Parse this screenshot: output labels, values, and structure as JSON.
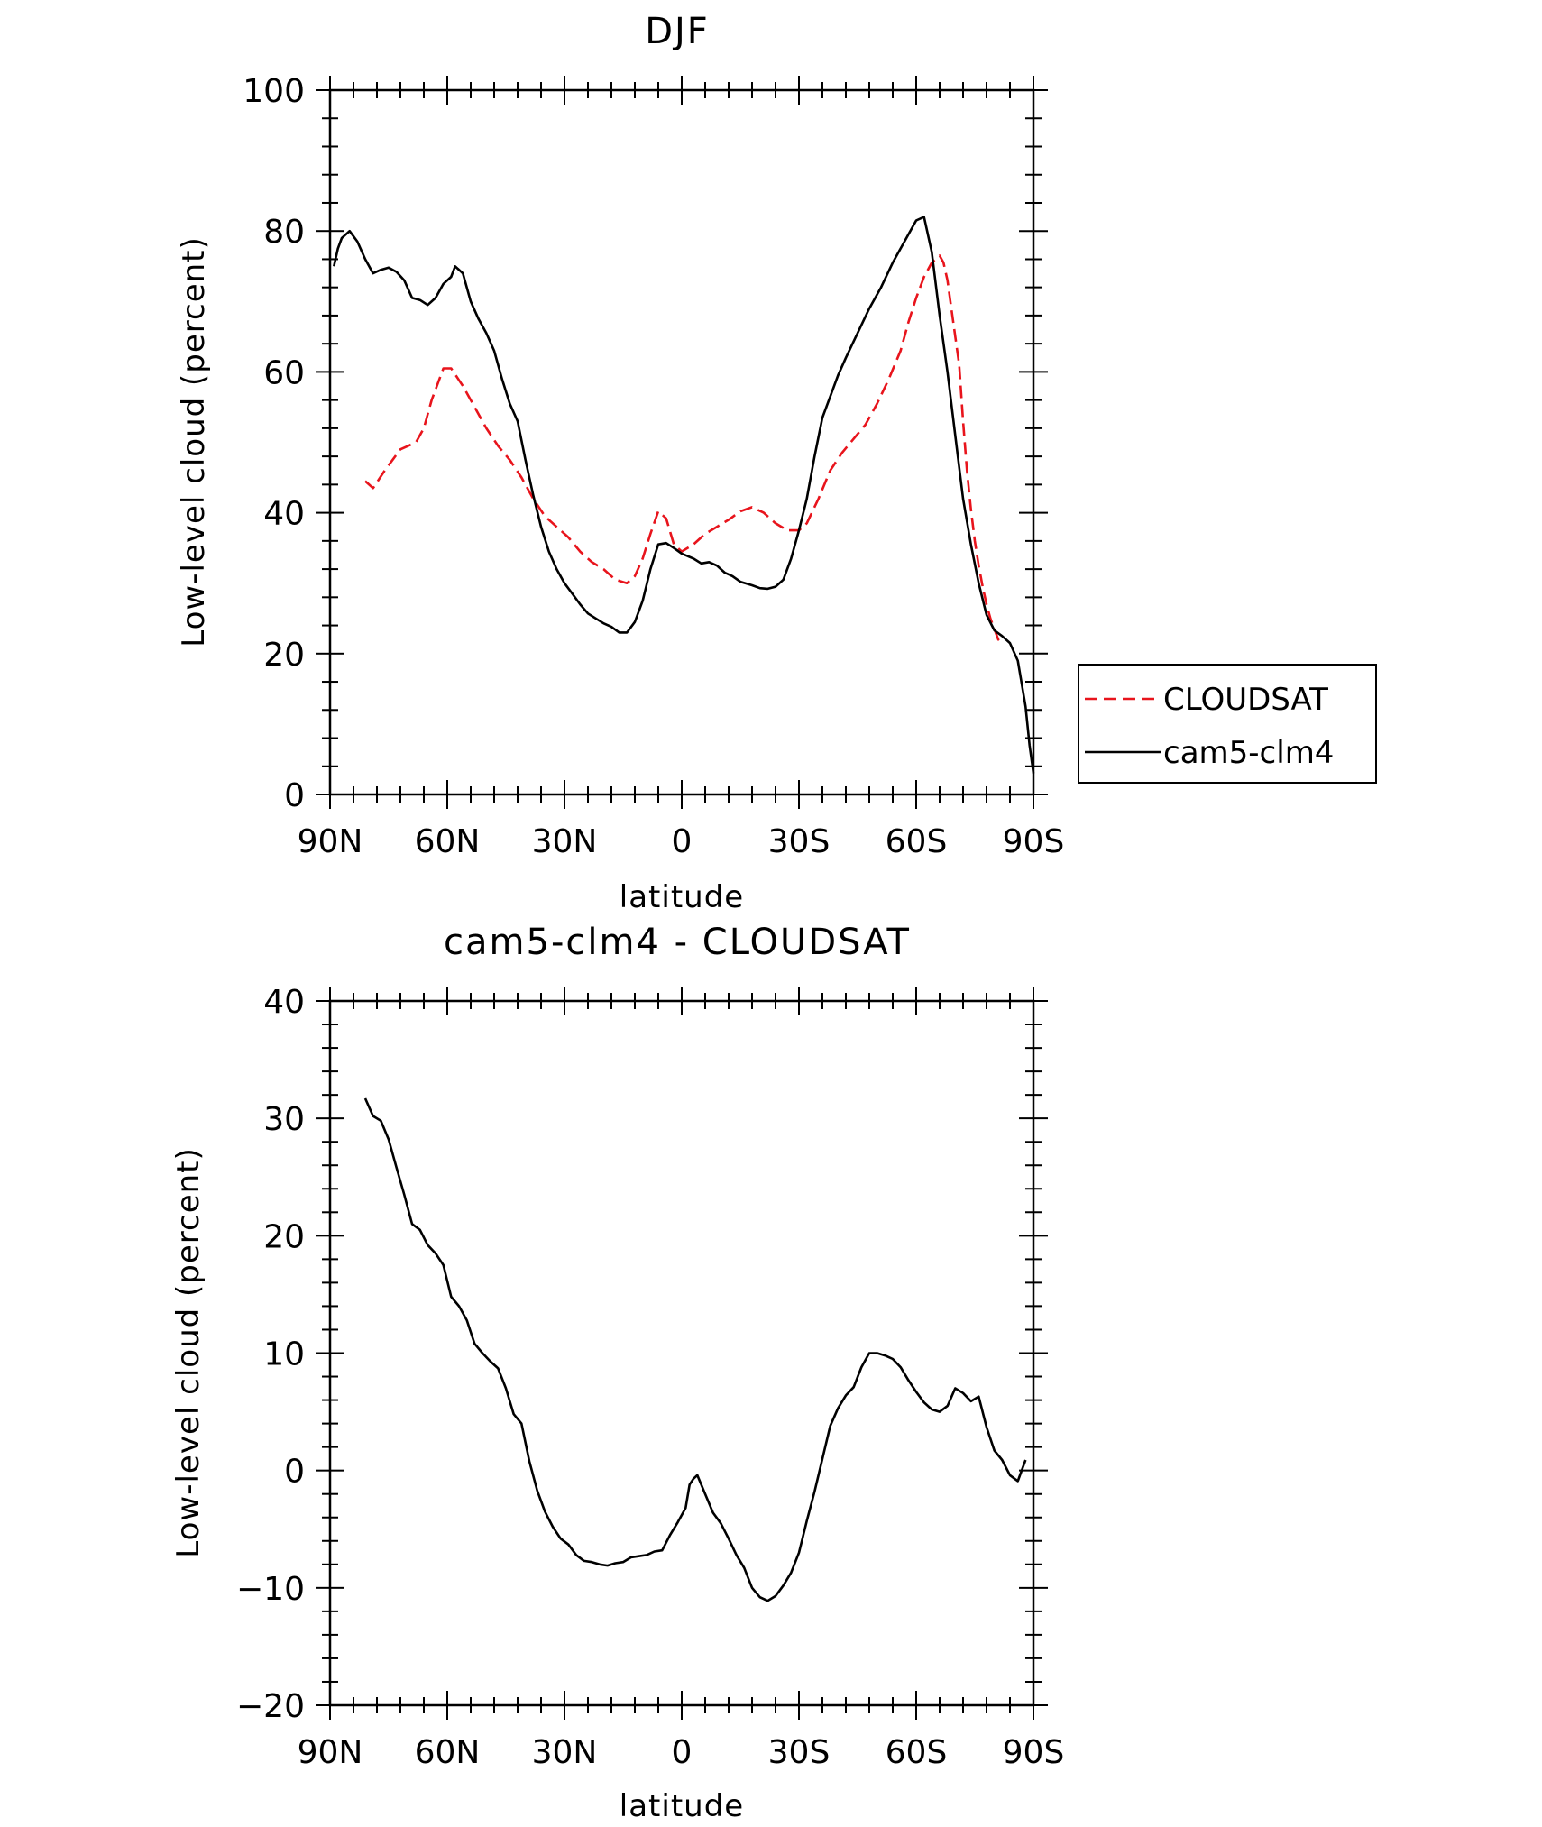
{
  "chart_data": [
    {
      "type": "line",
      "title": "DJF",
      "xlabel": "latitude",
      "ylabel": "Low-level cloud (percent)",
      "xlim": [
        90,
        -90
      ],
      "ylim": [
        0,
        100
      ],
      "x_ticks": [
        90,
        60,
        30,
        0,
        -30,
        -60,
        -90
      ],
      "x_tick_labels": [
        "90N",
        "60N",
        "30N",
        "0",
        "30S",
        "60S",
        "90S"
      ],
      "y_ticks": [
        0,
        20,
        40,
        60,
        80,
        100
      ],
      "y_tick_labels": [
        "0",
        "20",
        "40",
        "60",
        "80",
        "100"
      ],
      "legend": {
        "position": "right",
        "entries": [
          "CLOUDSAT",
          "cam5-clm4"
        ]
      },
      "series": [
        {
          "name": "CLOUDSAT",
          "color": "#e8141c",
          "style": "dashed",
          "points": [
            [
              81,
              44.5
            ],
            [
              79,
              43.5
            ],
            [
              76,
              46
            ],
            [
              72,
              49
            ],
            [
              70,
              49.5
            ],
            [
              68,
              50
            ],
            [
              66,
              52
            ],
            [
              64,
              56
            ],
            [
              61,
              60.5
            ],
            [
              59,
              60.5
            ],
            [
              56,
              58
            ],
            [
              53,
              55
            ],
            [
              50,
              52
            ],
            [
              47,
              49.5
            ],
            [
              44,
              47.5
            ],
            [
              41,
              45
            ],
            [
              38,
              42
            ],
            [
              35,
              39.5
            ],
            [
              32,
              38
            ],
            [
              29,
              36.5
            ],
            [
              26,
              34.5
            ],
            [
              23,
              33
            ],
            [
              20,
              32
            ],
            [
              17,
              30.5
            ],
            [
              14,
              30
            ],
            [
              12,
              31
            ],
            [
              10,
              33.5
            ],
            [
              8,
              37
            ],
            [
              6,
              40.2
            ],
            [
              4,
              39.2
            ],
            [
              2,
              35.5
            ],
            [
              0,
              34.5
            ],
            [
              -3,
              35.5
            ],
            [
              -6,
              37
            ],
            [
              -9,
              38
            ],
            [
              -12,
              39
            ],
            [
              -15,
              40.2
            ],
            [
              -18,
              40.8
            ],
            [
              -21,
              40
            ],
            [
              -24,
              38.5
            ],
            [
              -27,
              37.5
            ],
            [
              -30,
              37.5
            ],
            [
              -32,
              38.5
            ],
            [
              -35,
              42
            ],
            [
              -38,
              46
            ],
            [
              -41,
              48.5
            ],
            [
              -44,
              50.5
            ],
            [
              -47,
              52.5
            ],
            [
              -50,
              55.5
            ],
            [
              -53,
              59
            ],
            [
              -56,
              63
            ],
            [
              -58,
              67
            ],
            [
              -60,
              70.5
            ],
            [
              -62,
              73.5
            ],
            [
              -64,
              75.5
            ],
            [
              -66,
              76.5
            ],
            [
              -67,
              75.5
            ],
            [
              -68,
              73
            ],
            [
              -69,
              69
            ],
            [
              -71,
              61
            ],
            [
              -72,
              53
            ],
            [
              -73,
              46
            ],
            [
              -74,
              40.5
            ],
            [
              -75,
              36
            ],
            [
              -76,
              32.5
            ],
            [
              -77,
              29.5
            ],
            [
              -78,
              27
            ],
            [
              -79,
              25
            ],
            [
              -80,
              23.5
            ],
            [
              -81,
              22
            ],
            [
              -82,
              21.5
            ]
          ]
        },
        {
          "name": "cam5-clm4",
          "color": "#000000",
          "style": "solid",
          "points": [
            [
              89,
              75
            ],
            [
              88,
              77.5
            ],
            [
              87,
              79
            ],
            [
              85,
              80
            ],
            [
              83,
              78.5
            ],
            [
              81,
              76
            ],
            [
              79,
              74
            ],
            [
              77,
              74.5
            ],
            [
              75,
              74.8
            ],
            [
              73,
              74.2
            ],
            [
              71,
              73
            ],
            [
              69,
              70.5
            ],
            [
              67,
              70.2
            ],
            [
              65,
              69.5
            ],
            [
              63,
              70.5
            ],
            [
              61,
              72.5
            ],
            [
              59,
              73.5
            ],
            [
              58,
              75
            ],
            [
              56,
              74
            ],
            [
              54,
              70
            ],
            [
              52,
              67.5
            ],
            [
              50,
              65.5
            ],
            [
              48,
              63
            ],
            [
              46,
              59
            ],
            [
              44,
              55.5
            ],
            [
              42,
              53
            ],
            [
              40,
              47.5
            ],
            [
              38,
              42.5
            ],
            [
              36,
              38
            ],
            [
              34,
              34.5
            ],
            [
              32,
              32
            ],
            [
              30,
              30
            ],
            [
              28,
              28.5
            ],
            [
              26,
              27
            ],
            [
              24,
              25.7
            ],
            [
              22,
              25
            ],
            [
              20,
              24.3
            ],
            [
              18,
              23.8
            ],
            [
              16,
              23
            ],
            [
              14,
              23
            ],
            [
              12,
              24.5
            ],
            [
              10,
              27.5
            ],
            [
              8,
              32
            ],
            [
              6,
              35.5
            ],
            [
              4,
              35.7
            ],
            [
              2,
              35
            ],
            [
              0,
              34.2
            ],
            [
              -3,
              33.5
            ],
            [
              -5,
              32.8
            ],
            [
              -7,
              33
            ],
            [
              -9,
              32.5
            ],
            [
              -11,
              31.5
            ],
            [
              -13,
              31
            ],
            [
              -15,
              30.2
            ],
            [
              -18,
              29.7
            ],
            [
              -20,
              29.3
            ],
            [
              -22,
              29.2
            ],
            [
              -24,
              29.5
            ],
            [
              -26,
              30.5
            ],
            [
              -28,
              33.5
            ],
            [
              -30,
              37.5
            ],
            [
              -32,
              42
            ],
            [
              -34,
              48
            ],
            [
              -36,
              53.5
            ],
            [
              -38,
              56.5
            ],
            [
              -40,
              59.5
            ],
            [
              -42,
              62
            ],
            [
              -45,
              65.5
            ],
            [
              -48,
              69
            ],
            [
              -51,
              72
            ],
            [
              -54,
              75.5
            ],
            [
              -57,
              78.5
            ],
            [
              -60,
              81.5
            ],
            [
              -62,
              82
            ],
            [
              -64,
              77
            ],
            [
              -66,
              68
            ],
            [
              -68,
              60
            ],
            [
              -70,
              51
            ],
            [
              -72,
              42
            ],
            [
              -74,
              35.5
            ],
            [
              -76,
              30
            ],
            [
              -78,
              25.5
            ],
            [
              -80,
              23.3
            ],
            [
              -82,
              22.5
            ],
            [
              -84,
              21.5
            ],
            [
              -86,
              19
            ],
            [
              -88,
              12.5
            ],
            [
              -89,
              7
            ],
            [
              -90,
              3
            ]
          ]
        }
      ]
    },
    {
      "type": "line",
      "title": "cam5-clm4 - CLOUDSAT",
      "xlabel": "latitude",
      "ylabel": "Low-level cloud (percent)",
      "xlim": [
        90,
        -90
      ],
      "ylim": [
        -20,
        40
      ],
      "x_ticks": [
        90,
        60,
        30,
        0,
        -30,
        -60,
        -90
      ],
      "x_tick_labels": [
        "90N",
        "60N",
        "30N",
        "0",
        "30S",
        "60S",
        "90S"
      ],
      "y_ticks": [
        -20,
        -10,
        0,
        10,
        20,
        30,
        40
      ],
      "y_tick_labels": [
        "−20",
        "−10",
        "0",
        "10",
        "20",
        "30",
        "40"
      ],
      "series": [
        {
          "color": "#000000",
          "style": "solid",
          "points": [
            [
              81,
              31.7
            ],
            [
              79,
              30.2
            ],
            [
              77,
              29.8
            ],
            [
              75,
              28.2
            ],
            [
              73,
              25.8
            ],
            [
              71,
              23.5
            ],
            [
              69,
              21
            ],
            [
              67,
              20.5
            ],
            [
              65,
              19.2
            ],
            [
              63,
              18.5
            ],
            [
              61,
              17.5
            ],
            [
              59,
              14.8
            ],
            [
              57,
              14
            ],
            [
              55,
              12.8
            ],
            [
              53,
              10.8
            ],
            [
              51,
              10
            ],
            [
              49,
              9.3
            ],
            [
              47,
              8.7
            ],
            [
              45,
              7
            ],
            [
              43,
              4.8
            ],
            [
              41,
              4
            ],
            [
              39,
              0.8
            ],
            [
              37,
              -1.7
            ],
            [
              35,
              -3.5
            ],
            [
              33,
              -4.8
            ],
            [
              31,
              -5.8
            ],
            [
              29,
              -6.3
            ],
            [
              27,
              -7.2
            ],
            [
              25,
              -7.7
            ],
            [
              23,
              -7.8
            ],
            [
              21,
              -8
            ],
            [
              19,
              -8.1
            ],
            [
              17,
              -7.9
            ],
            [
              15,
              -7.8
            ],
            [
              13,
              -7.4
            ],
            [
              11,
              -7.3
            ],
            [
              9,
              -7.2
            ],
            [
              7,
              -6.9
            ],
            [
              5,
              -6.8
            ],
            [
              3,
              -5.5
            ],
            [
              1,
              -4.4
            ],
            [
              -1,
              -3.2
            ],
            [
              -2,
              -1.2
            ],
            [
              -3,
              -0.7
            ],
            [
              -4,
              -0.4
            ],
            [
              -6,
              -2
            ],
            [
              -8,
              -3.6
            ],
            [
              -10,
              -4.5
            ],
            [
              -12,
              -5.8
            ],
            [
              -14,
              -7.2
            ],
            [
              -16,
              -8.3
            ],
            [
              -18,
              -10
            ],
            [
              -20,
              -10.8
            ],
            [
              -22,
              -11.1
            ],
            [
              -24,
              -10.7
            ],
            [
              -26,
              -9.8
            ],
            [
              -28,
              -8.7
            ],
            [
              -30,
              -7
            ],
            [
              -32,
              -4.3
            ],
            [
              -34,
              -1.8
            ],
            [
              -36,
              1
            ],
            [
              -38,
              3.8
            ],
            [
              -40,
              5.3
            ],
            [
              -42,
              6.4
            ],
            [
              -44,
              7.1
            ],
            [
              -46,
              8.8
            ],
            [
              -48,
              10
            ],
            [
              -50,
              10
            ],
            [
              -52,
              9.8
            ],
            [
              -54,
              9.5
            ],
            [
              -56,
              8.8
            ],
            [
              -58,
              7.7
            ],
            [
              -60,
              6.7
            ],
            [
              -62,
              5.8
            ],
            [
              -64,
              5.2
            ],
            [
              -66,
              5
            ],
            [
              -68,
              5.5
            ],
            [
              -70,
              7
            ],
            [
              -72,
              6.6
            ],
            [
              -74,
              5.9
            ],
            [
              -76,
              6.3
            ],
            [
              -78,
              3.7
            ],
            [
              -80,
              1.7
            ],
            [
              -82,
              0.9
            ],
            [
              -84,
              -0.4
            ],
            [
              -86,
              -0.9
            ],
            [
              -88,
              0.9
            ]
          ]
        }
      ]
    }
  ]
}
